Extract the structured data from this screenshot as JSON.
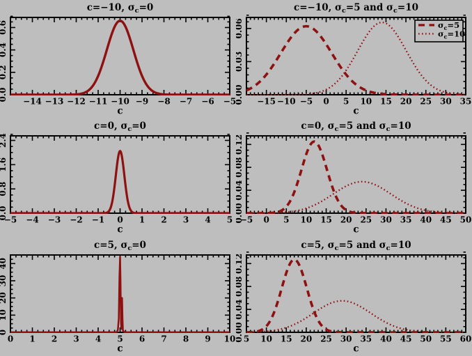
{
  "figure": {
    "background_color": "#BEBEBE",
    "curve_color": "#8E1111",
    "axis_color": "#000000",
    "text_color": "#000000",
    "layout": "2 columns x 3 rows of line plots"
  },
  "chart_data": [
    {
      "type": "line",
      "title": "c=−10,  σ_c=0",
      "xlabel": "c",
      "xlim": [
        -15,
        -5
      ],
      "ylim": [
        0,
        0.69
      ],
      "xticks": {
        "vals": [
          -14,
          -13,
          -12,
          -11,
          -10,
          -9,
          -8,
          -7,
          -6,
          -5
        ],
        "labels": [
          "−14",
          "−13",
          "−12",
          "−11",
          "−10",
          "−9",
          "−8",
          "−7",
          "−6",
          "−5"
        ],
        "minor_step": 0.25
      },
      "yticks": {
        "vals": [
          0,
          0.2,
          0.4,
          0.6
        ],
        "labels": [
          "0.0",
          "0.2",
          "0.4",
          "0.6"
        ],
        "minor_step": 0.05
      },
      "curves": [
        {
          "label": "σ_c=0",
          "style": "solid",
          "shape": "gaussian",
          "mean": -10,
          "sigma": 0.605,
          "peak": 0.66,
          "stroke_width": 3.4
        }
      ],
      "legend": null
    },
    {
      "type": "line",
      "title": "c=−10,  σ_c=5 and σ_c=10",
      "xlabel": "c",
      "xlim": [
        -20,
        35
      ],
      "ylim": [
        0,
        0.07
      ],
      "xticks": {
        "vals": [
          -15,
          -10,
          -5,
          0,
          5,
          10,
          15,
          20,
          25,
          30,
          35
        ],
        "labels": [
          "−15",
          "−10",
          "−5",
          "0",
          "5",
          "10",
          "15",
          "20",
          "25",
          "30",
          "35"
        ],
        "minor_step": 1
      },
      "yticks": {
        "vals": [
          0,
          0.03,
          0.06
        ],
        "labels": [
          "0.00",
          "0.03",
          "0.06"
        ],
        "minor_step": 0.006
      },
      "curves": [
        {
          "label": "σ_c=5",
          "style": "dashed",
          "shape": "gaussian",
          "mean": -5,
          "sigma": 6.4,
          "peak": 0.062,
          "stroke_width": 3.6
        },
        {
          "label": "σ_c=10",
          "style": "dotted",
          "shape": "gaussian",
          "mean": 14,
          "sigma": 6.1,
          "peak": 0.0655,
          "stroke_width": 2.3
        }
      ],
      "legend": {
        "position": "top-right",
        "entries": [
          {
            "style": "dashed",
            "label": "σ_c=5"
          },
          {
            "style": "dotted",
            "label": "σ_c=10"
          }
        ]
      }
    },
    {
      "type": "line",
      "title": "c=0,  σ_c=0",
      "xlabel": "c",
      "xlim": [
        -5,
        5
      ],
      "ylim": [
        0,
        2.55
      ],
      "xticks": {
        "vals": [
          -5,
          -4,
          -3,
          -2,
          -1,
          0,
          1,
          2,
          3,
          4,
          5
        ],
        "labels": [
          "−5",
          "−4",
          "−3",
          "−2",
          "−1",
          "0",
          "1",
          "2",
          "3",
          "4",
          "5"
        ],
        "minor_step": 0.25
      },
      "yticks": {
        "vals": [
          0,
          0.8,
          1.6,
          2.4
        ],
        "labels": [
          "0.0",
          "0.8",
          "1.6",
          "2.4"
        ],
        "minor_step": 0.2
      },
      "curves": [
        {
          "label": "σ_c=0",
          "style": "solid",
          "shape": "gaussian",
          "mean": 0,
          "sigma": 0.195,
          "peak": 2.05,
          "stroke_width": 3.2
        }
      ],
      "legend": null
    },
    {
      "type": "line",
      "title": "c=0,  σ_c=5 and σ_c=10",
      "xlabel": "c",
      "xlim": [
        -5,
        50
      ],
      "ylim": [
        0,
        0.135
      ],
      "xticks": {
        "vals": [
          -5,
          0,
          5,
          10,
          15,
          20,
          25,
          30,
          35,
          40,
          45,
          50
        ],
        "labels": [
          "−5",
          "0",
          "5",
          "10",
          "15",
          "20",
          "25",
          "30",
          "35",
          "40",
          "45",
          "50"
        ],
        "minor_step": 1
      },
      "yticks": {
        "vals": [
          0,
          0.04,
          0.08,
          0.12
        ],
        "labels": [
          "0.00",
          "0.04",
          "0.08",
          "0.12"
        ],
        "minor_step": 0.01
      },
      "curves": [
        {
          "label": "σ_c=5",
          "style": "dashed",
          "shape": "gaussian",
          "mean": 12,
          "sigma": 3.2,
          "peak": 0.125,
          "stroke_width": 3.6
        },
        {
          "label": "σ_c=10",
          "style": "dotted",
          "shape": "gaussian",
          "mean": 24,
          "sigma": 7.25,
          "peak": 0.055,
          "stroke_width": 2.3
        }
      ],
      "legend": null
    },
    {
      "type": "line",
      "title": "c=5,  σ_c=0",
      "xlabel": "c",
      "xlim": [
        0,
        10
      ],
      "ylim": [
        0,
        45
      ],
      "xticks": {
        "vals": [
          0,
          1,
          2,
          3,
          4,
          5,
          6,
          7,
          8,
          9,
          10
        ],
        "labels": [
          "0",
          "1",
          "2",
          "3",
          "4",
          "5",
          "6",
          "7",
          "8",
          "9",
          "10"
        ],
        "minor_step": 0.25
      },
      "yticks": {
        "vals": [
          0,
          10,
          20,
          30,
          40
        ],
        "labels": [
          "0",
          "10",
          "20",
          "30",
          "40"
        ],
        "minor_step": 2.5
      },
      "curves": [
        {
          "label": "σ_c=0",
          "style": "solid",
          "shape": "points",
          "stroke_width": 2.5,
          "points": [
            [
              0,
              0.05
            ],
            [
              4.8,
              0.05
            ],
            [
              4.86,
              0.3
            ],
            [
              4.9,
              1.5
            ],
            [
              4.94,
              8
            ],
            [
              4.97,
              32
            ],
            [
              5.0,
              44
            ],
            [
              5.02,
              30
            ],
            [
              5.04,
              6
            ],
            [
              5.06,
              2
            ],
            [
              5.09,
              20
            ],
            [
              5.11,
              8
            ],
            [
              5.13,
              1
            ],
            [
              5.2,
              0.05
            ],
            [
              10,
              0.05
            ]
          ]
        }
      ],
      "legend": null
    },
    {
      "type": "line",
      "title": "c=5,  σ_c=5 and σ_c=10",
      "xlabel": "c",
      "xlim": [
        5,
        60
      ],
      "ylim": [
        0,
        0.135
      ],
      "xticks": {
        "vals": [
          5,
          10,
          15,
          20,
          25,
          30,
          35,
          40,
          45,
          50,
          55,
          60
        ],
        "labels": [
          "5",
          "10",
          "15",
          "20",
          "25",
          "30",
          "35",
          "40",
          "45",
          "50",
          "55",
          "60"
        ],
        "minor_step": 1
      },
      "yticks": {
        "vals": [
          0,
          0.04,
          0.08,
          0.12
        ],
        "labels": [
          "0.00",
          "0.04",
          "0.08",
          "0.12"
        ],
        "minor_step": 0.01
      },
      "curves": [
        {
          "label": "σ_c=5",
          "style": "dashed",
          "shape": "gaussian",
          "mean": 17,
          "sigma": 3.15,
          "peak": 0.127,
          "stroke_width": 3.6
        },
        {
          "label": "σ_c=10",
          "style": "dotted",
          "shape": "gaussian",
          "mean": 29,
          "sigma": 7.2,
          "peak": 0.055,
          "stroke_width": 2.3
        }
      ],
      "legend": null
    }
  ]
}
